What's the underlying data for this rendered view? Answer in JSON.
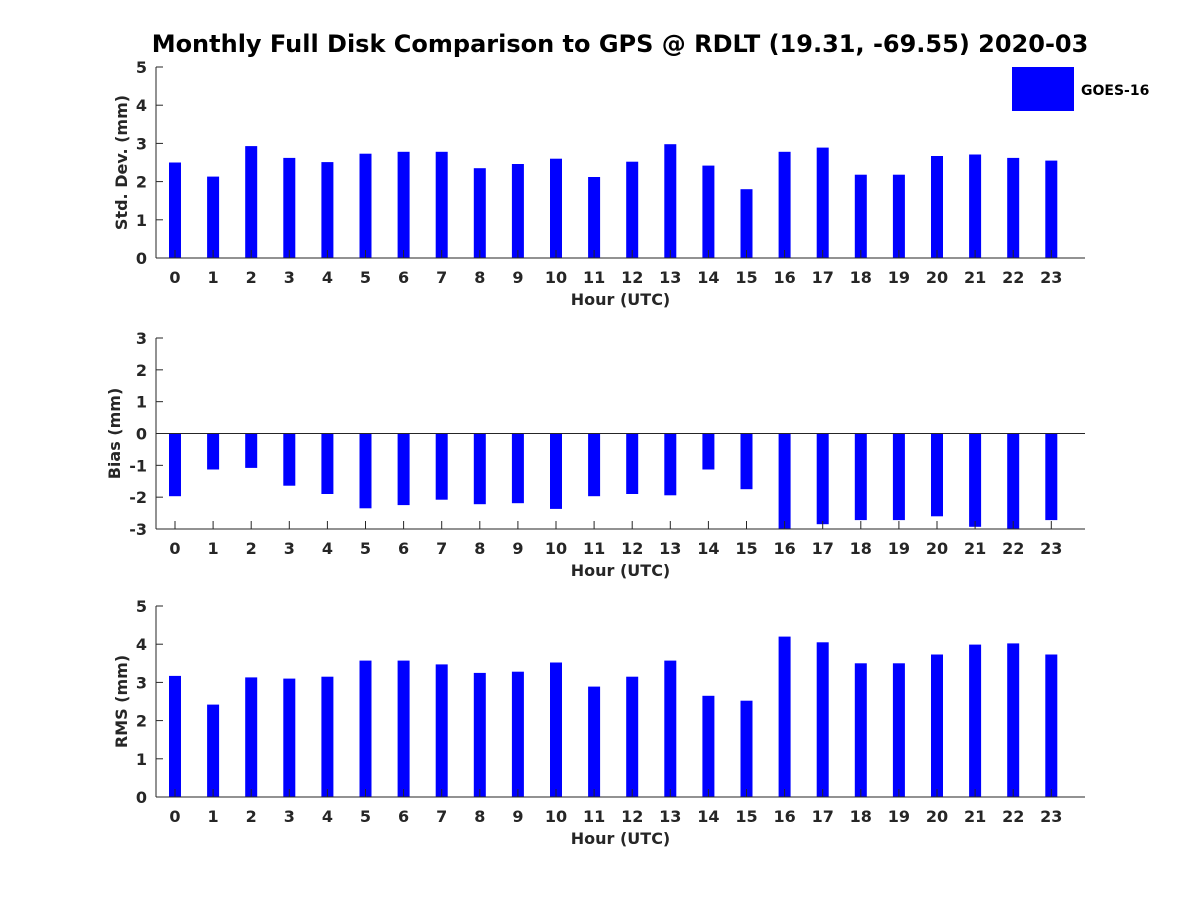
{
  "title": "Monthly Full Disk Comparison to GPS @ RDLT (19.31, -69.55) 2020-03",
  "legend": {
    "label": "GOES-16",
    "color": "#0000ff"
  },
  "chart_data": [
    {
      "type": "bar",
      "name": "std-dev",
      "categories": [
        "0",
        "1",
        "2",
        "3",
        "4",
        "5",
        "6",
        "7",
        "8",
        "9",
        "10",
        "11",
        "12",
        "13",
        "14",
        "15",
        "16",
        "17",
        "18",
        "19",
        "20",
        "21",
        "22",
        "23"
      ],
      "series": [
        {
          "name": "GOES-16",
          "values": [
            2.5,
            2.13,
            2.93,
            2.62,
            2.51,
            2.73,
            2.78,
            2.78,
            2.35,
            2.46,
            2.6,
            2.12,
            2.52,
            2.98,
            2.42,
            1.8,
            2.78,
            2.89,
            2.18,
            2.18,
            2.67,
            2.71,
            2.62,
            2.55
          ]
        }
      ],
      "xlabel": "Hour (UTC)",
      "ylabel": "Std. Dev. (mm)",
      "ylim": [
        0,
        5
      ],
      "yticks": [
        "0",
        "1",
        "2",
        "3",
        "4",
        "5"
      ],
      "baseline": 0,
      "grid": false
    },
    {
      "type": "bar",
      "name": "bias",
      "categories": [
        "0",
        "1",
        "2",
        "3",
        "4",
        "5",
        "6",
        "7",
        "8",
        "9",
        "10",
        "11",
        "12",
        "13",
        "14",
        "15",
        "16",
        "17",
        "18",
        "19",
        "20",
        "21",
        "22",
        "23"
      ],
      "series": [
        {
          "name": "GOES-16",
          "values": [
            -1.97,
            -1.13,
            -1.08,
            -1.64,
            -1.9,
            -2.35,
            -2.25,
            -2.08,
            -2.22,
            -2.19,
            -2.37,
            -1.97,
            -1.9,
            -1.94,
            -1.13,
            -1.75,
            -3.0,
            -2.85,
            -2.72,
            -2.72,
            -2.6,
            -2.93,
            -3.0,
            -2.72
          ]
        }
      ],
      "xlabel": "Hour (UTC)",
      "ylabel": "Bias (mm)",
      "ylim": [
        -3,
        3
      ],
      "yticks": [
        "-3",
        "-2",
        "-1",
        "0",
        "1",
        "2",
        "3"
      ],
      "baseline": 0,
      "grid": false
    },
    {
      "type": "bar",
      "name": "rms",
      "categories": [
        "0",
        "1",
        "2",
        "3",
        "4",
        "5",
        "6",
        "7",
        "8",
        "9",
        "10",
        "11",
        "12",
        "13",
        "14",
        "15",
        "16",
        "17",
        "18",
        "19",
        "20",
        "21",
        "22",
        "23"
      ],
      "series": [
        {
          "name": "GOES-16",
          "values": [
            3.17,
            2.42,
            3.13,
            3.1,
            3.15,
            3.57,
            3.57,
            3.47,
            3.25,
            3.28,
            3.52,
            2.89,
            3.15,
            3.57,
            2.65,
            2.52,
            4.2,
            4.05,
            3.5,
            3.5,
            3.73,
            3.99,
            4.02,
            3.73
          ]
        }
      ],
      "xlabel": "Hour (UTC)",
      "ylabel": "RMS (mm)",
      "ylim": [
        0,
        5
      ],
      "yticks": [
        "0",
        "1",
        "2",
        "3",
        "4",
        "5"
      ],
      "baseline": 0,
      "grid": false
    }
  ]
}
